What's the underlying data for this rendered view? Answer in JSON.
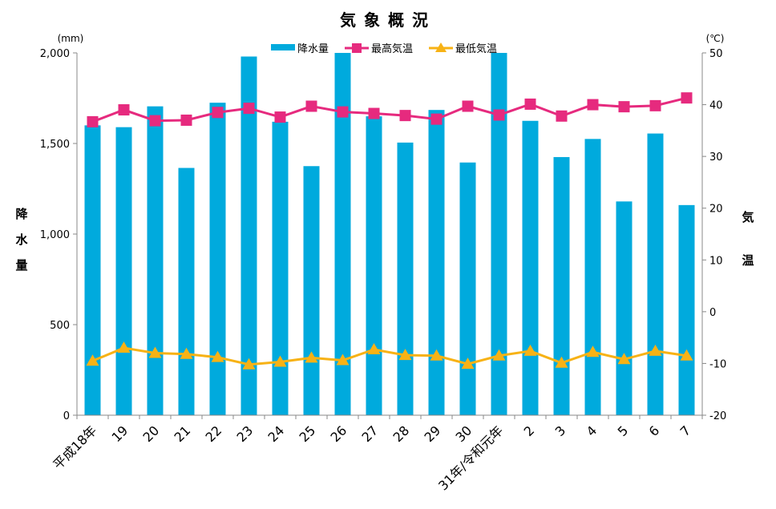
{
  "chart_data": {
    "type": "bar",
    "title": "気象概況",
    "left_unit": "(mm)",
    "right_unit": "(℃)",
    "ylabel_left": "降水量",
    "ylabel_right": "気温",
    "ylim_left": [
      0,
      2000
    ],
    "ylim_right": [
      -20,
      50
    ],
    "yticks_left": [
      "0",
      "500",
      "1,000",
      "1,500",
      "2,000"
    ],
    "yticks_right": [
      "-20",
      "-10",
      "0",
      "10",
      "20",
      "30",
      "40",
      "50"
    ],
    "categories": [
      "平成18年",
      "19",
      "20",
      "21",
      "22",
      "23",
      "24",
      "25",
      "26",
      "27",
      "28",
      "29",
      "30",
      "31年/令和元年",
      "2",
      "3",
      "4",
      "5",
      "6",
      "7"
    ],
    "series": [
      {
        "name": "降水量",
        "kind": "bar",
        "axis": "left",
        "color": "#00aadd",
        "values": [
          1600,
          1590,
          1705,
          1365,
          1725,
          1980,
          1620,
          1375,
          2000,
          1650,
          1505,
          1685,
          1395,
          2000,
          1625,
          1425,
          1525,
          1180,
          1555,
          1160
        ]
      },
      {
        "name": "最高気温",
        "kind": "line",
        "axis": "right",
        "color": "#e62a7e",
        "marker": "square",
        "values": [
          36.7,
          39.0,
          36.9,
          37.0,
          38.5,
          39.3,
          37.6,
          39.7,
          38.6,
          38.3,
          37.9,
          37.2,
          39.7,
          38.0,
          40.1,
          37.8,
          40.0,
          39.6,
          39.8,
          41.3
        ]
      },
      {
        "name": "最低気温",
        "kind": "line",
        "axis": "right",
        "color": "#f7b215",
        "marker": "triangle",
        "values": [
          -9.5,
          -7.0,
          -8.0,
          -8.2,
          -8.8,
          -10.2,
          -9.7,
          -8.9,
          -9.4,
          -7.3,
          -8.4,
          -8.5,
          -10.1,
          -8.5,
          -7.6,
          -9.9,
          -7.8,
          -9.2,
          -7.6,
          -8.5
        ]
      }
    ],
    "grid": false,
    "legend_position": "top-center"
  }
}
